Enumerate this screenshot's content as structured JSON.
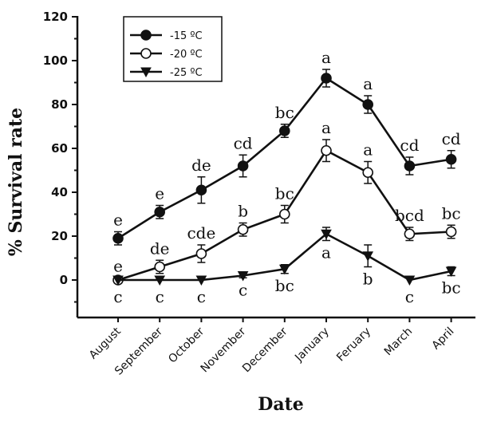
{
  "chart_data": {
    "type": "line",
    "title": "",
    "xlabel": "Date",
    "ylabel": "% Survival rate",
    "categories": [
      "August",
      "September",
      "October",
      "November",
      "December",
      "January",
      "Feruary",
      "March",
      "April"
    ],
    "ylim": [
      -10,
      120
    ],
    "yticks": [
      0,
      20,
      40,
      60,
      80,
      100,
      120
    ],
    "grid": false,
    "legend_position": "top-left",
    "series": [
      {
        "name": "-15 ºC",
        "marker": "filled-circle",
        "values": [
          19,
          31,
          41,
          52,
          68,
          92,
          80,
          52,
          55
        ],
        "errors": [
          3,
          3,
          6,
          5,
          3,
          4,
          4,
          4,
          4
        ],
        "labels": [
          "e",
          "e",
          "de",
          "cd",
          "bc",
          "a",
          "a",
          "cd",
          "cd"
        ]
      },
      {
        "name": "-20 ºC",
        "marker": "open-circle",
        "values": [
          0,
          6,
          12,
          23,
          30,
          59,
          49,
          21,
          22
        ],
        "errors": [
          1,
          3,
          4,
          3,
          4,
          5,
          5,
          3,
          3
        ],
        "labels": [
          "e",
          "de",
          "cde",
          "b",
          "bc",
          "a",
          "a",
          "bcd",
          "bc"
        ]
      },
      {
        "name": "-25 ºC",
        "marker": "filled-triangle-down",
        "values": [
          0,
          0,
          0,
          2,
          5,
          21,
          11,
          0,
          4
        ],
        "errors": [
          0,
          0,
          0,
          1,
          2,
          3,
          5,
          0,
          2
        ],
        "labels": [
          "c",
          "c",
          "c",
          "c",
          "bc",
          "a",
          "b",
          "c",
          "bc"
        ]
      }
    ]
  }
}
